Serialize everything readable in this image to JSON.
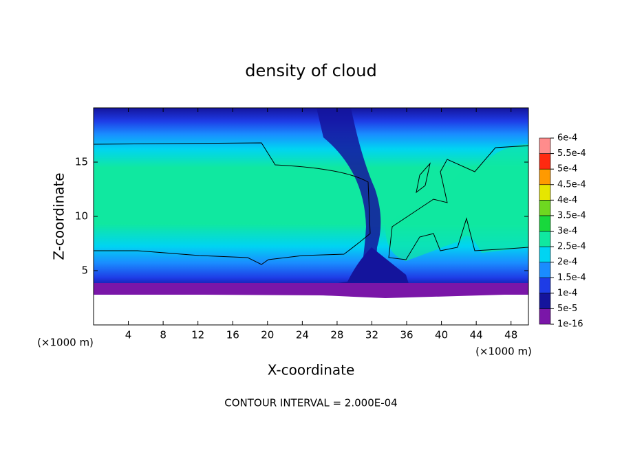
{
  "chart_data": {
    "type": "contour",
    "title": "density of cloud",
    "x_label": "X-coordinate",
    "y_label": "Z-coordinate",
    "x_unit": "(×1000 m)",
    "y_unit": "(×1000 m)",
    "footnote": "CONTOUR INTERVAL = 2.000E-04",
    "xlim": [
      0,
      50
    ],
    "ylim": [
      0,
      20
    ],
    "xticks": [
      4,
      8,
      12,
      16,
      20,
      24,
      28,
      32,
      36,
      40,
      44,
      48
    ],
    "yticks": [
      5,
      10,
      15
    ],
    "colorbar": {
      "levels": [
        {
          "value": 1e-16,
          "label": "1e-16"
        },
        {
          "value": 5e-05,
          "label": "5e-5"
        },
        {
          "value": 0.0001,
          "label": "1e-4"
        },
        {
          "value": 0.00015,
          "label": "1.5e-4"
        },
        {
          "value": 0.0002,
          "label": "2e-4"
        },
        {
          "value": 0.00025,
          "label": "2.5e-4"
        },
        {
          "value": 0.0003,
          "label": "3e-4"
        },
        {
          "value": 0.00035,
          "label": "3.5e-4"
        },
        {
          "value": 0.0004,
          "label": "4e-4"
        },
        {
          "value": 0.00045,
          "label": "4.5e-4"
        },
        {
          "value": 0.0005,
          "label": "5e-4"
        },
        {
          "value": 0.00055,
          "label": "5.5e-4"
        },
        {
          "value": 0.0006,
          "label": "6e-4"
        }
      ],
      "colors": [
        "#7a16a8",
        "#14149c",
        "#1e3ce6",
        "#1a8cff",
        "#00d4f2",
        "#10e8a0",
        "#18d83c",
        "#6ed820",
        "#e6e600",
        "#ff9a00",
        "#ff2a10",
        "#ff8c8c"
      ]
    }
  }
}
